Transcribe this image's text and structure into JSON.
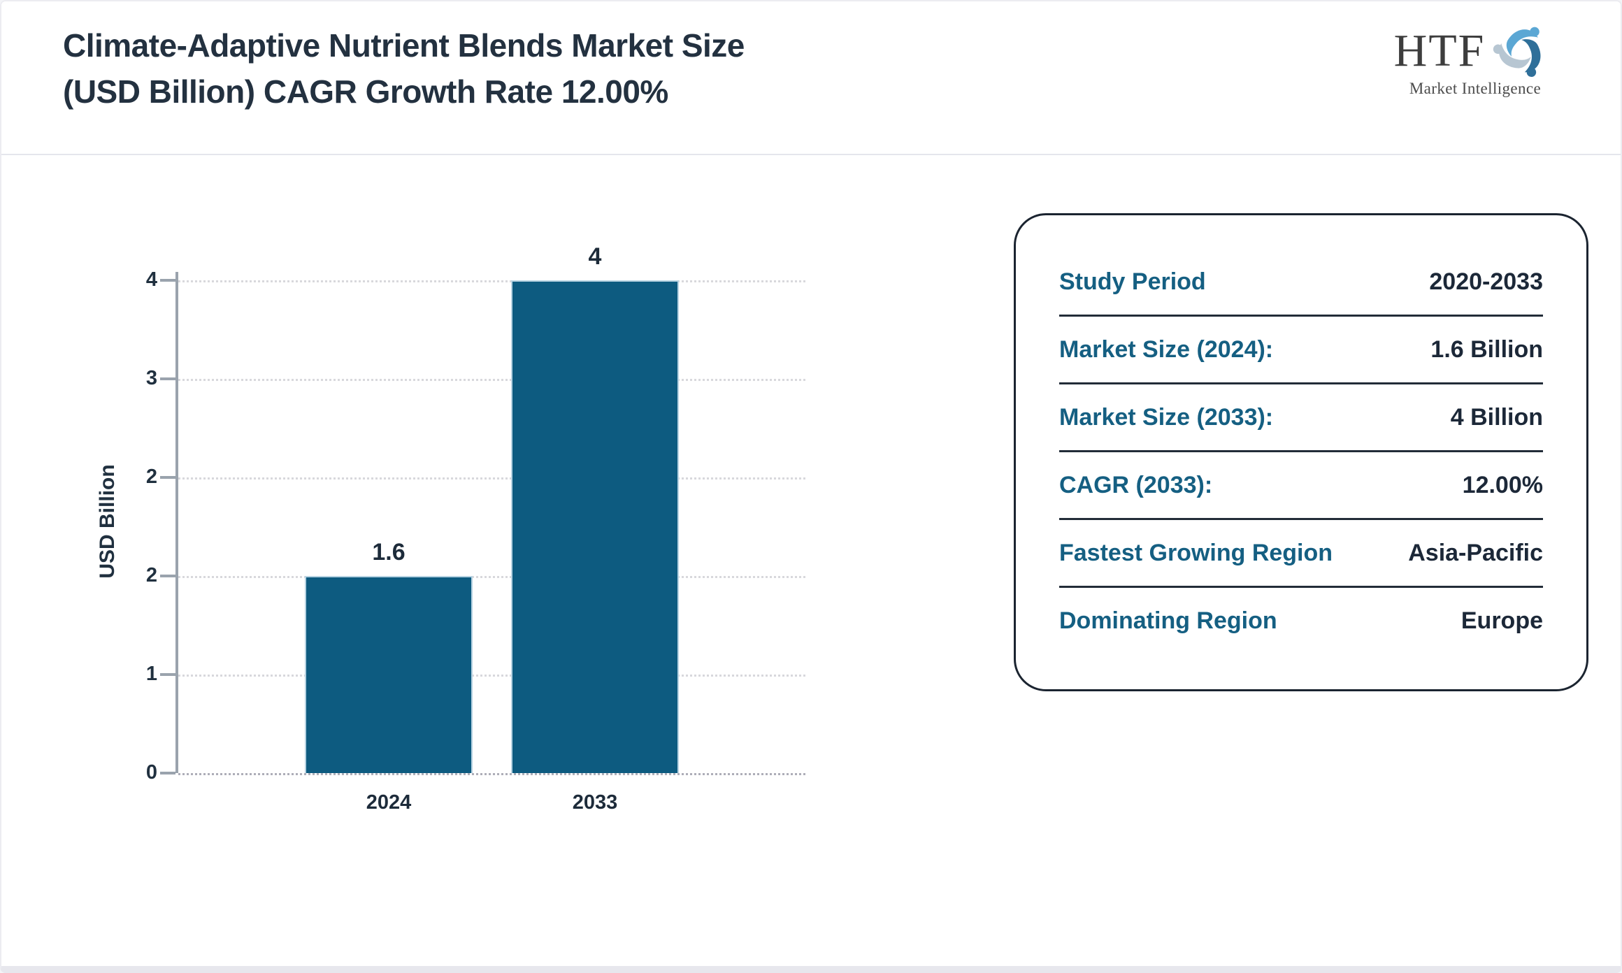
{
  "header": {
    "title_line1": "Climate-Adaptive Nutrient Blends Market Size",
    "title_line2": "(USD Billion) CAGR Growth Rate 12.00%"
  },
  "logo": {
    "brand": "HTF",
    "subtitle": "Market Intelligence",
    "icon": "three-figures-swirl-icon",
    "icon_colors": {
      "light_blue": "#5ba7d4",
      "pale_gray_blue": "#b7c6d2",
      "dark_blue": "#2f6f99"
    }
  },
  "chart_data": {
    "type": "bar",
    "categories": [
      "2024",
      "2033"
    ],
    "values": [
      1.6,
      4
    ],
    "bar_labels": [
      "1.6",
      "4"
    ],
    "title": "",
    "xlabel": "",
    "ylabel": "USD Billion",
    "ylim": [
      0,
      4
    ],
    "ytick_labels_top_to_bottom": [
      "4",
      "3",
      "2",
      "2",
      "1",
      "0"
    ],
    "bar_color": "#0d5b80",
    "grid": "horizontal dotted gridlines, light gray",
    "legend": "none"
  },
  "summary_card": {
    "label_color": "#155f82",
    "value_color": "#1c2838",
    "rows": [
      {
        "label": "Study Period",
        "value": "2020-2033"
      },
      {
        "label": "Market Size (2024):",
        "value": "1.6 Billion"
      },
      {
        "label": "Market Size (2033):",
        "value": "4 Billion"
      },
      {
        "label": "CAGR (2033):",
        "value": "12.00%"
      },
      {
        "label": "Fastest Growing Region",
        "value": "Asia-Pacific"
      },
      {
        "label": "Dominating Region",
        "value": "Europe"
      }
    ]
  }
}
